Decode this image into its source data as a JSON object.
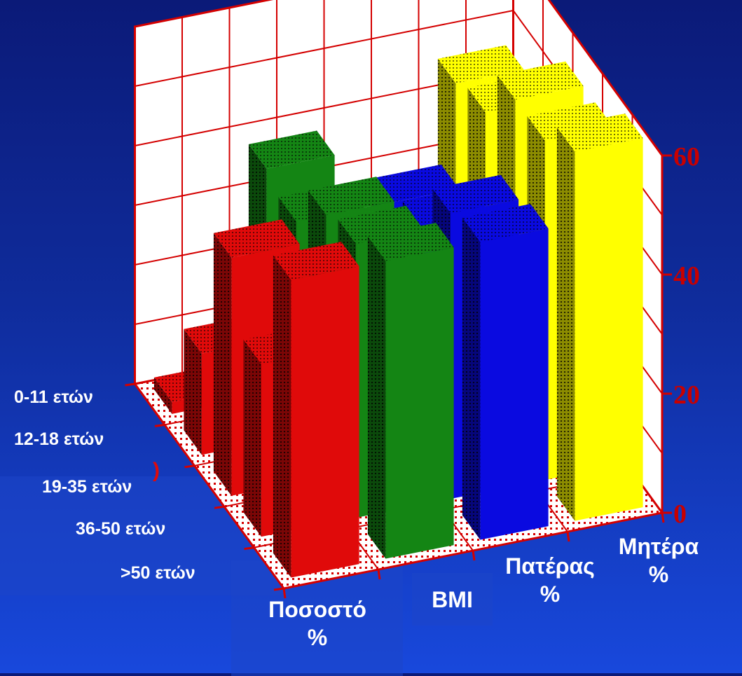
{
  "chart_data": {
    "type": "bar",
    "title": "",
    "x_categories": [
      "Ποσοστό\n%",
      "BMI",
      "Πατέρας\n%",
      "Μητέρα\n%"
    ],
    "y_categories": [
      "0-11 ετών",
      "12-18 ετών",
      "19-35 ετών",
      "36-50 ετών",
      ">50 ετών"
    ],
    "z_ticks": [
      "0",
      "20",
      "40",
      "60"
    ],
    "zlim": [
      0,
      60
    ],
    "grid": true,
    "series": [
      {
        "values": [
          50,
          29,
          40,
          17,
          2
        ]
      },
      {
        "values": [
          50,
          46,
          44,
          36,
          38
        ]
      },
      {
        "values": [
          50,
          48,
          39,
          36,
          22
        ]
      },
      {
        "values": [
          62,
          57,
          57,
          48,
          46
        ]
      }
    ],
    "colors": [
      "#e00a0a",
      "#148514",
      "#0a0ae0",
      "#ffff00"
    ]
  },
  "fragments": {
    "red_mark": ")"
  },
  "colors": {
    "axis": "#d40000",
    "wall": "#ffffff",
    "label": "#ffffff",
    "tick": "#c80000"
  }
}
